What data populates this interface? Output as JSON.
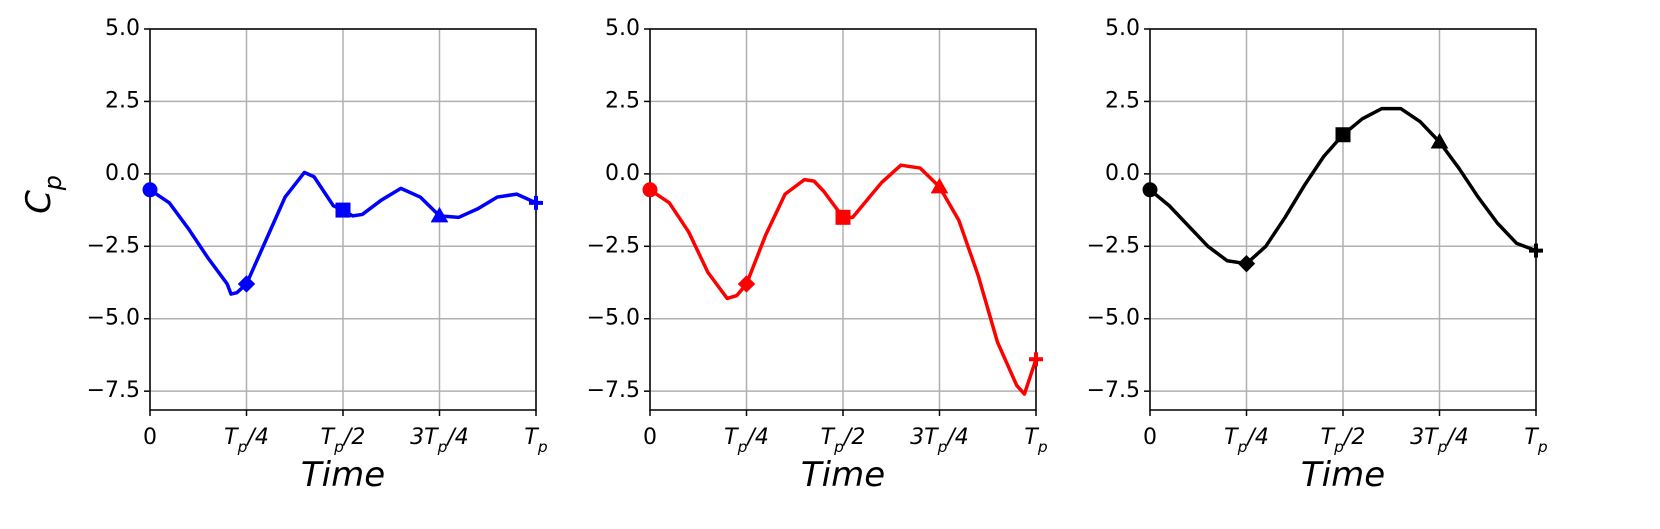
{
  "chart_data": [
    {
      "type": "line",
      "xlabel": "Time",
      "ylabel": "Cp",
      "x": [
        0,
        0.05,
        0.1,
        0.15,
        0.2,
        0.21,
        0.225,
        0.25,
        0.3,
        0.35,
        0.4,
        0.425,
        0.45,
        0.475,
        0.5,
        0.525,
        0.55,
        0.6,
        0.65,
        0.7,
        0.75,
        0.8,
        0.85,
        0.9,
        0.95,
        1
      ],
      "series": [
        {
          "color": "#0000ff",
          "values": [
            -0.55,
            -1.0,
            -1.9,
            -2.9,
            -3.8,
            -4.15,
            -4.1,
            -3.8,
            -2.3,
            -0.8,
            0.05,
            -0.1,
            -0.6,
            -1.1,
            -1.25,
            -1.45,
            -1.4,
            -0.9,
            -0.5,
            -0.8,
            -1.45,
            -1.5,
            -1.2,
            -0.8,
            -0.7,
            -1.0
          ]
        }
      ],
      "markers": [
        "circle",
        "diamond",
        "square",
        "triangle",
        "plus"
      ],
      "xlim": [
        0,
        1
      ],
      "xticks": [
        0,
        {
          "value": 0.25,
          "label": "Tp/4"
        },
        {
          "value": 0.5,
          "label": "Tp/2"
        },
        {
          "value": 0.75,
          "label": "3Tp/4"
        },
        {
          "value": 1,
          "label": "Tp"
        }
      ],
      "ylim": [
        -8.15,
        5
      ],
      "yticks": [
        {
          "value": 5,
          "label": "5.0"
        },
        {
          "value": 2.5,
          "label": "2.5"
        },
        {
          "value": 0,
          "label": "0.0"
        },
        {
          "value": -2.5,
          "label": "−2.5"
        },
        {
          "value": -5,
          "label": "−5.0"
        },
        {
          "value": -7.5,
          "label": "−7.5"
        }
      ],
      "grid": true
    },
    {
      "type": "line",
      "xlabel": "Time",
      "x": [
        0,
        0.05,
        0.1,
        0.15,
        0.2,
        0.225,
        0.25,
        0.3,
        0.35,
        0.4,
        0.425,
        0.45,
        0.5,
        0.525,
        0.55,
        0.6,
        0.65,
        0.7,
        0.75,
        0.8,
        0.85,
        0.9,
        0.95,
        0.97,
        1
      ],
      "series": [
        {
          "color": "#ff0000",
          "values": [
            -0.55,
            -1.0,
            -2.0,
            -3.4,
            -4.3,
            -4.2,
            -3.8,
            -2.1,
            -0.7,
            -0.2,
            -0.25,
            -0.6,
            -1.5,
            -1.5,
            -1.1,
            -0.3,
            0.3,
            0.2,
            -0.45,
            -1.6,
            -3.5,
            -5.8,
            -7.3,
            -7.6,
            -6.4
          ]
        }
      ],
      "markers": [
        "circle",
        "diamond",
        "square",
        "triangle",
        "plus"
      ],
      "xlim": [
        0,
        1
      ],
      "xticks": [
        0,
        {
          "value": 0.25,
          "label": "Tp/4"
        },
        {
          "value": 0.5,
          "label": "Tp/2"
        },
        {
          "value": 0.75,
          "label": "3Tp/4"
        },
        {
          "value": 1,
          "label": "Tp"
        }
      ],
      "ylim": [
        -8.15,
        5
      ],
      "yticks": [
        {
          "value": 5,
          "label": "5.0"
        },
        {
          "value": 2.5,
          "label": "2.5"
        },
        {
          "value": 0,
          "label": "0.0"
        },
        {
          "value": -2.5,
          "label": "−2.5"
        },
        {
          "value": -5,
          "label": "−5.0"
        },
        {
          "value": -7.5,
          "label": "−7.5"
        }
      ],
      "grid": true
    },
    {
      "type": "line",
      "xlabel": "Time",
      "x": [
        0,
        0.05,
        0.1,
        0.15,
        0.2,
        0.25,
        0.3,
        0.35,
        0.4,
        0.45,
        0.5,
        0.55,
        0.6,
        0.65,
        0.7,
        0.75,
        0.8,
        0.85,
        0.9,
        0.95,
        1
      ],
      "series": [
        {
          "color": "#000000",
          "values": [
            -0.55,
            -1.1,
            -1.8,
            -2.5,
            -3.0,
            -3.1,
            -2.5,
            -1.5,
            -0.4,
            0.6,
            1.35,
            1.9,
            2.25,
            2.25,
            1.8,
            1.1,
            0.2,
            -0.8,
            -1.7,
            -2.4,
            -2.65
          ]
        }
      ],
      "markers": [
        "circle",
        "diamond",
        "square",
        "triangle",
        "plus"
      ],
      "xlim": [
        0,
        1
      ],
      "xticks": [
        0,
        {
          "value": 0.25,
          "label": "Tp/4"
        },
        {
          "value": 0.5,
          "label": "Tp/2"
        },
        {
          "value": 0.75,
          "label": "3Tp/4"
        },
        {
          "value": 1,
          "label": "Tp"
        }
      ],
      "ylim": [
        -8.15,
        5
      ],
      "yticks": [
        {
          "value": 5,
          "label": "5.0"
        },
        {
          "value": 2.5,
          "label": "2.5"
        },
        {
          "value": 0,
          "label": "0.0"
        },
        {
          "value": -2.5,
          "label": "−2.5"
        },
        {
          "value": -5,
          "label": "−5.0"
        },
        {
          "value": -7.5,
          "label": "−7.5"
        }
      ],
      "grid": true
    }
  ]
}
